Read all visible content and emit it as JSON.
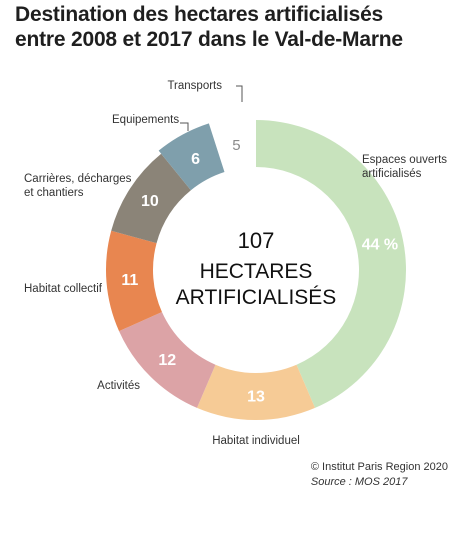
{
  "chart_data": {
    "type": "pie",
    "title": "Destination des hectares artificialisés entre 2008 et 2017 dans le Val-de-Marne",
    "title_lines": [
      "Destination des hectares artificialisés",
      "entre 2008 et 2017 dans le Val-de-Marne"
    ],
    "center_lines": [
      "107",
      "HECTARES",
      "ARTIFICIALISÉS"
    ],
    "slices": [
      {
        "label_lines": [
          "Espaces ouverts",
          "artificialisés"
        ],
        "value": 44,
        "display": "44 %",
        "color": "#c8e3bd"
      },
      {
        "label_lines": [
          "Habitat individuel"
        ],
        "value": 13,
        "display": "13",
        "color": "#f6cb96"
      },
      {
        "label_lines": [
          "Activités"
        ],
        "value": 12,
        "display": "12",
        "color": "#dca3a6"
      },
      {
        "label_lines": [
          "Habitat collectif"
        ],
        "value": 11,
        "display": "11",
        "color": "#e88650"
      },
      {
        "label_lines": [
          "Carrières, décharges",
          "et chantiers"
        ],
        "value": 10,
        "display": "10",
        "color": "#8b8478"
      },
      {
        "label_lines": [
          "Equipements"
        ],
        "value": 6,
        "display": "6",
        "color": "#7f9fac"
      },
      {
        "label_lines": [
          "Transports"
        ],
        "value": 5,
        "display": "5",
        "color": "#ffffff"
      }
    ]
  },
  "credit": {
    "line1": "© Institut Paris Region 2020",
    "line2": "Source : MOS 2017"
  }
}
